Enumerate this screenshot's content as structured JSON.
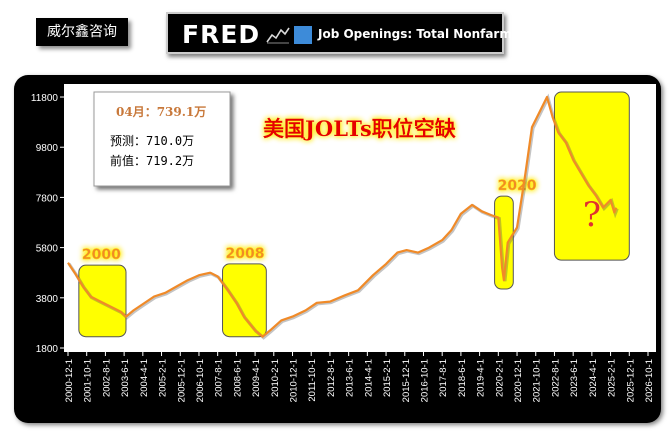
{
  "header": {
    "brand_tag": "威尔鑫咨询",
    "fred_logo": "FRED",
    "fred_series_title": "Job Openings: Total Nonfarm",
    "fred_icon": "line-chart-icon",
    "fred_square_color": "#3d8bd9"
  },
  "info_box": {
    "latest": "04月：739.1万",
    "forecast": "预测：710.0万",
    "previous": "前值：719.2万"
  },
  "chart_title": "美国JOLTs职位空缺",
  "chart_data": {
    "type": "line",
    "title": "美国JOLTs职位空缺",
    "xlabel": "",
    "ylabel": "",
    "ylim": [
      1800,
      12000
    ],
    "yticks": [
      1800,
      3800,
      5800,
      7800,
      9800,
      11800
    ],
    "xlim": [
      2000.917,
      2026.75
    ],
    "xticks": [
      {
        "label": "2000-12-1",
        "t": 2000.917
      },
      {
        "label": "2001-10-1",
        "t": 2001.75
      },
      {
        "label": "2002-8-1",
        "t": 2002.583
      },
      {
        "label": "2003-6-1",
        "t": 2003.417
      },
      {
        "label": "2004-4-1",
        "t": 2004.25
      },
      {
        "label": "2005-2-1",
        "t": 2005.083
      },
      {
        "label": "2005-12-1",
        "t": 2005.917
      },
      {
        "label": "2006-10-1",
        "t": 2006.75
      },
      {
        "label": "2007-8-1",
        "t": 2007.583
      },
      {
        "label": "2008-6-1",
        "t": 2008.417
      },
      {
        "label": "2009-4-1",
        "t": 2009.25
      },
      {
        "label": "2010-2-1",
        "t": 2010.083
      },
      {
        "label": "2010-12-1",
        "t": 2010.917
      },
      {
        "label": "2011-10-1",
        "t": 2011.75
      },
      {
        "label": "2012-8-1",
        "t": 2012.583
      },
      {
        "label": "2013-6-1",
        "t": 2013.417
      },
      {
        "label": "2014-4-1",
        "t": 2014.25
      },
      {
        "label": "2015-2-1",
        "t": 2015.083
      },
      {
        "label": "2015-12-1",
        "t": 2015.917
      },
      {
        "label": "2016-10-1",
        "t": 2016.75
      },
      {
        "label": "2017-8-1",
        "t": 2017.583
      },
      {
        "label": "2018-6-1",
        "t": 2018.417
      },
      {
        "label": "2019-4-1",
        "t": 2019.25
      },
      {
        "label": "2020-2-1",
        "t": 2020.083
      },
      {
        "label": "2020-12-1",
        "t": 2020.917
      },
      {
        "label": "2021-10-1",
        "t": 2021.75
      },
      {
        "label": "2022-8-1",
        "t": 2022.583
      },
      {
        "label": "2023-6-1",
        "t": 2023.417
      },
      {
        "label": "2024-4-1",
        "t": 2024.25
      },
      {
        "label": "2025-2-1",
        "t": 2025.083
      },
      {
        "label": "2025-12-1",
        "t": 2025.917
      },
      {
        "label": "2026-10-1",
        "t": 2026.75
      }
    ],
    "grid": false,
    "line_color": "#f08a28",
    "series": [
      {
        "values": [
          {
            "t": 2000.917,
            "v": 5200
          },
          {
            "t": 2001.25,
            "v": 4750
          },
          {
            "t": 2001.583,
            "v": 4250
          },
          {
            "t": 2001.917,
            "v": 3850
          },
          {
            "t": 2002.25,
            "v": 3700
          },
          {
            "t": 2002.583,
            "v": 3550
          },
          {
            "t": 2002.917,
            "v": 3400
          },
          {
            "t": 2003.25,
            "v": 3250
          },
          {
            "t": 2003.5,
            "v": 3050
          },
          {
            "t": 2003.833,
            "v": 3300
          },
          {
            "t": 2004.25,
            "v": 3550
          },
          {
            "t": 2004.75,
            "v": 3850
          },
          {
            "t": 2005.25,
            "v": 4000
          },
          {
            "t": 2005.75,
            "v": 4250
          },
          {
            "t": 2006.25,
            "v": 4500
          },
          {
            "t": 2006.75,
            "v": 4700
          },
          {
            "t": 2007.25,
            "v": 4800
          },
          {
            "t": 2007.583,
            "v": 4650
          },
          {
            "t": 2008.0,
            "v": 4150
          },
          {
            "t": 2008.417,
            "v": 3600
          },
          {
            "t": 2008.75,
            "v": 3050
          },
          {
            "t": 2009.25,
            "v": 2500
          },
          {
            "t": 2009.583,
            "v": 2250
          },
          {
            "t": 2009.917,
            "v": 2500
          },
          {
            "t": 2010.417,
            "v": 2900
          },
          {
            "t": 2010.917,
            "v": 3050
          },
          {
            "t": 2011.5,
            "v": 3300
          },
          {
            "t": 2012.0,
            "v": 3600
          },
          {
            "t": 2012.583,
            "v": 3650
          },
          {
            "t": 2013.25,
            "v": 3900
          },
          {
            "t": 2013.833,
            "v": 4100
          },
          {
            "t": 2014.5,
            "v": 4700
          },
          {
            "t": 2015.083,
            "v": 5150
          },
          {
            "t": 2015.583,
            "v": 5600
          },
          {
            "t": 2016.0,
            "v": 5700
          },
          {
            "t": 2016.5,
            "v": 5600
          },
          {
            "t": 2017.0,
            "v": 5800
          },
          {
            "t": 2017.583,
            "v": 6100
          },
          {
            "t": 2018.0,
            "v": 6500
          },
          {
            "t": 2018.417,
            "v": 7150
          },
          {
            "t": 2018.917,
            "v": 7500
          },
          {
            "t": 2019.333,
            "v": 7250
          },
          {
            "t": 2019.75,
            "v": 7100
          },
          {
            "t": 2020.083,
            "v": 7000
          },
          {
            "t": 2020.25,
            "v": 5000
          },
          {
            "t": 2020.333,
            "v": 4500
          },
          {
            "t": 2020.5,
            "v": 6000
          },
          {
            "t": 2020.917,
            "v": 6600
          },
          {
            "t": 2021.25,
            "v": 8500
          },
          {
            "t": 2021.583,
            "v": 10600
          },
          {
            "t": 2021.917,
            "v": 11200
          },
          {
            "t": 2022.25,
            "v": 11800
          },
          {
            "t": 2022.5,
            "v": 11000
          },
          {
            "t": 2022.75,
            "v": 10400
          },
          {
            "t": 2023.083,
            "v": 10000
          },
          {
            "t": 2023.417,
            "v": 9300
          },
          {
            "t": 2023.75,
            "v": 8800
          },
          {
            "t": 2024.083,
            "v": 8300
          },
          {
            "t": 2024.417,
            "v": 7900
          },
          {
            "t": 2024.75,
            "v": 7400
          },
          {
            "t": 2025.083,
            "v": 7700
          },
          {
            "t": 2025.25,
            "v": 7200
          },
          {
            "t": 2025.333,
            "v": 7391
          }
        ]
      }
    ],
    "highlights": [
      {
        "label": "2000",
        "t0": 2001.4,
        "t1": 2003.5,
        "v0": 2250,
        "v1": 5100
      },
      {
        "label": "2008",
        "t0": 2007.8,
        "t1": 2009.75,
        "v0": 2250,
        "v1": 5150
      },
      {
        "label": "2020",
        "t0": 2019.917,
        "t1": 2020.75,
        "v0": 4150,
        "v1": 7850
      },
      {
        "label": "?",
        "t0": 2022.583,
        "t1": 2025.917,
        "v0": 5300,
        "v1": 12000
      }
    ]
  }
}
